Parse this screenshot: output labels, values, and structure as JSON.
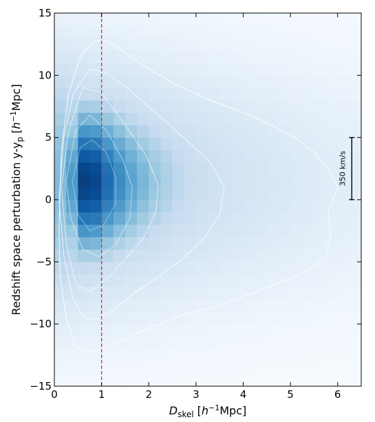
{
  "chart_data": {
    "type": "heatmap",
    "title": "",
    "xlabel": {
      "prefix": "D",
      "sub": "skel",
      "unit_open": " [",
      "unit_italic": "h",
      "unit_sup": "−1",
      "unit_close": "Mpc]"
    },
    "ylabel": {
      "prefix": "Redshift space perturbation y-y",
      "sub": "p",
      "unit_open": " [",
      "unit_italic": "h",
      "unit_sup": "−1",
      "unit_close": "Mpc]"
    },
    "xlim": [
      0,
      6.5
    ],
    "ylim": [
      -15,
      15
    ],
    "xticks": [
      0,
      1,
      2,
      3,
      4,
      5,
      6
    ],
    "xtick_labels": [
      "0",
      "1",
      "2",
      "3",
      "4",
      "5",
      "6"
    ],
    "yticks": [
      -15,
      -10,
      -5,
      0,
      5,
      10,
      15
    ],
    "ytick_labels": [
      "−15",
      "−10",
      "−5",
      "0",
      "5",
      "10",
      "15"
    ],
    "colormap": [
      "#f7fbff",
      "#deebf7",
      "#c6dbef",
      "#9ecae1",
      "#6baed6",
      "#4292c6",
      "#2171b5",
      "#08519c",
      "#08306b"
    ],
    "bin_size": {
      "x": 0.25,
      "y": 1.0
    },
    "density_model": {
      "peak_x": 0.75,
      "peak_y": 1.5,
      "note": "binned density peaks near D=0.75, y=1.5 and decays outward"
    },
    "contours": [
      {
        "level": "outer",
        "x": [
          0.1,
          0.15,
          0.3,
          0.55,
          0.85,
          1.15,
          1.5,
          2.0,
          2.6,
          3.3,
          4.0,
          4.6,
          5.1,
          5.5,
          5.8,
          6.0,
          5.9,
          5.8,
          5.85,
          5.75,
          5.4,
          4.9,
          4.2,
          3.5,
          2.8,
          2.2,
          1.7,
          1.3,
          1.0,
          0.7,
          0.45,
          0.25,
          0.12,
          0.1
        ],
        "y": [
          -2.0,
          4.0,
          8.5,
          11.5,
          12.8,
          12.7,
          11.8,
          10.5,
          9.2,
          8.0,
          7.0,
          6.0,
          5.0,
          3.8,
          2.5,
          1.0,
          0.0,
          -1.0,
          -3.0,
          -4.5,
          -5.6,
          -6.5,
          -7.5,
          -8.5,
          -9.2,
          -10.0,
          -10.8,
          -11.6,
          -12.1,
          -12.3,
          -11.8,
          -9.5,
          -6.0,
          -2.0
        ]
      },
      {
        "level": "mid-outer",
        "x": [
          0.1,
          0.2,
          0.4,
          0.75,
          1.1,
          1.6,
          2.2,
          2.8,
          3.3,
          3.6,
          3.5,
          3.2,
          2.7,
          2.2,
          1.7,
          1.3,
          0.95,
          0.65,
          0.4,
          0.2,
          0.1
        ],
        "y": [
          0.0,
          5.0,
          8.5,
          10.5,
          10.2,
          8.8,
          6.8,
          4.8,
          3.0,
          1.0,
          -1.2,
          -3.0,
          -4.8,
          -6.2,
          -7.5,
          -8.7,
          -9.6,
          -9.6,
          -8.0,
          -4.5,
          0.0
        ]
      },
      {
        "level": "mid",
        "x": [
          0.15,
          0.3,
          0.6,
          1.0,
          1.5,
          1.95,
          2.2,
          2.15,
          1.9,
          1.5,
          1.1,
          0.75,
          0.45,
          0.25,
          0.15
        ],
        "y": [
          1.0,
          5.5,
          9.0,
          8.6,
          6.0,
          3.5,
          1.2,
          -1.0,
          -3.0,
          -4.8,
          -6.4,
          -7.4,
          -6.8,
          -3.5,
          1.0
        ]
      },
      {
        "level": "inner",
        "x": [
          0.25,
          0.45,
          0.75,
          1.1,
          1.45,
          1.65,
          1.6,
          1.3,
          0.95,
          0.6,
          0.35,
          0.25
        ],
        "y": [
          1.5,
          5.5,
          6.8,
          5.6,
          3.2,
          1.0,
          -1.5,
          -3.6,
          -4.6,
          -4.0,
          -1.5,
          1.5
        ]
      },
      {
        "level": "core",
        "x": [
          0.38,
          0.55,
          0.8,
          1.1,
          1.3,
          1.3,
          1.05,
          0.75,
          0.5,
          0.38
        ],
        "y": [
          1.5,
          4.2,
          4.8,
          3.8,
          1.8,
          -0.3,
          -2.0,
          -2.5,
          -1.2,
          1.5
        ]
      }
    ],
    "reference_line": {
      "x": 1.0,
      "color": "#e8272b",
      "style": "dashed"
    },
    "scale_bar": {
      "x": 6.3,
      "y_from": 0,
      "y_to": 5,
      "label": "350 km/s"
    },
    "grid": false,
    "legend": "none"
  }
}
